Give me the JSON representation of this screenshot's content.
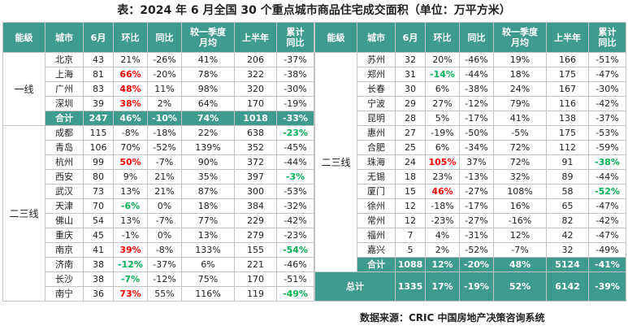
{
  "title": "表：2024 年 6 月全国 30 个重点城市商品住宅成交面积（单位：万平方米）",
  "headers": [
    "能级",
    "城市",
    "6月",
    "环比",
    "同比",
    "较一季度\n月均",
    "上半年",
    "累计\n同比"
  ],
  "left": {
    "groups": [
      {
        "level": "一线",
        "rows": [
          {
            "city": "北京",
            "jun": "43",
            "mom": "21%",
            "yoy": "-26%",
            "q1": "41%",
            "h1": "206",
            "cum": "-37%"
          },
          {
            "city": "上海",
            "jun": "81",
            "mom": "66%",
            "mom_c": "red",
            "yoy": "-20%",
            "q1": "78%",
            "h1": "322",
            "cum": "-38%"
          },
          {
            "city": "广州",
            "jun": "83",
            "mom": "48%",
            "mom_c": "red",
            "yoy": "11%",
            "q1": "98%",
            "h1": "320",
            "cum": "-30%"
          },
          {
            "city": "深圳",
            "jun": "39",
            "mom": "38%",
            "mom_c": "red",
            "yoy": "2%",
            "q1": "64%",
            "h1": "170",
            "cum": "-19%"
          }
        ],
        "total": {
          "city": "合计",
          "jun": "247",
          "mom": "46%",
          "yoy": "-10%",
          "q1": "74%",
          "h1": "1018",
          "cum": "-33%"
        }
      },
      {
        "level": "二三线",
        "rows": [
          {
            "city": "成都",
            "jun": "115",
            "mom": "-8%",
            "yoy": "-18%",
            "q1": "22%",
            "h1": "638",
            "cum": "-23%",
            "cum_c": "green"
          },
          {
            "city": "青岛",
            "jun": "106",
            "mom": "70%",
            "yoy": "-52%",
            "q1": "139%",
            "h1": "352",
            "cum": "-45%"
          },
          {
            "city": "杭州",
            "jun": "99",
            "mom": "50%",
            "mom_c": "red",
            "yoy": "-7%",
            "q1": "90%",
            "h1": "372",
            "cum": "-44%"
          },
          {
            "city": "西安",
            "jun": "80",
            "mom": "9%",
            "yoy": "21%",
            "q1": "35%",
            "h1": "397",
            "cum": "-3%",
            "cum_c": "green"
          },
          {
            "city": "武汉",
            "jun": "73",
            "mom": "13%",
            "yoy": "21%",
            "q1": "87%",
            "h1": "300",
            "cum": "-53%"
          },
          {
            "city": "天津",
            "jun": "70",
            "mom": "-6%",
            "mom_c": "green",
            "yoy": "0%",
            "q1": "18%",
            "h1": "384",
            "cum": "-32%"
          },
          {
            "city": "佛山",
            "jun": "54",
            "mom": "13%",
            "yoy": "-7%",
            "q1": "77%",
            "h1": "229",
            "cum": "-42%"
          },
          {
            "city": "重庆",
            "jun": "45",
            "mom": "-1%",
            "yoy": "0%",
            "q1": "13%",
            "h1": "279",
            "cum": "-23%"
          },
          {
            "city": "南京",
            "jun": "41",
            "mom": "39%",
            "mom_c": "red",
            "yoy": "-8%",
            "q1": "133%",
            "h1": "155",
            "cum": "-54%",
            "cum_c": "green"
          },
          {
            "city": "济南",
            "jun": "38",
            "mom": "-12%",
            "mom_c": "green",
            "yoy": "-37%",
            "q1": "6%",
            "h1": "221",
            "cum": "-46%"
          },
          {
            "city": "长沙",
            "jun": "38",
            "mom": "-7%",
            "mom_c": "green",
            "yoy": "-12%",
            "q1": "75%",
            "h1": "170",
            "cum": "-51%"
          },
          {
            "city": "南宁",
            "jun": "36",
            "mom": "73%",
            "mom_c": "red",
            "yoy": "55%",
            "q1": "116%",
            "h1": "119",
            "cum": "-49%",
            "cum_c": "green"
          }
        ]
      }
    ]
  },
  "right": {
    "level": "二三线",
    "rows": [
      {
        "city": "苏州",
        "jun": "32",
        "mom": "20%",
        "yoy": "-46%",
        "q1": "19%",
        "h1": "166",
        "cum": "-51%"
      },
      {
        "city": "郑州",
        "jun": "31",
        "mom": "-14%",
        "mom_c": "green",
        "yoy": "-44%",
        "q1": "18%",
        "h1": "175",
        "cum": "-47%"
      },
      {
        "city": "长春",
        "jun": "30",
        "mom": "6%",
        "yoy": "-38%",
        "q1": "24%",
        "h1": "167",
        "cum": "-30%"
      },
      {
        "city": "宁波",
        "jun": "29",
        "mom": "27%",
        "yoy": "-12%",
        "q1": "79%",
        "h1": "116",
        "cum": "-42%"
      },
      {
        "city": "昆明",
        "jun": "28",
        "mom": "5%",
        "yoy": "-17%",
        "q1": "41%",
        "h1": "138",
        "cum": "-37%"
      },
      {
        "city": "惠州",
        "jun": "27",
        "mom": "-19%",
        "yoy": "-50%",
        "q1": "-5%",
        "h1": "175",
        "cum": "-53%"
      },
      {
        "city": "合肥",
        "jun": "25",
        "mom": "6%",
        "yoy": "-34%",
        "q1": "72%",
        "h1": "112",
        "cum": "-59%"
      },
      {
        "city": "珠海",
        "jun": "24",
        "mom": "105%",
        "mom_c": "red",
        "yoy": "37%",
        "q1": "72%",
        "h1": "91",
        "cum": "-38%",
        "cum_c": "green"
      },
      {
        "city": "无锡",
        "jun": "18",
        "mom": "23%",
        "yoy": "-13%",
        "q1": "32%",
        "h1": "89",
        "cum": "-44%"
      },
      {
        "city": "厦门",
        "jun": "15",
        "mom": "46%",
        "mom_c": "red",
        "yoy": "-27%",
        "q1": "108%",
        "h1": "58",
        "cum": "-52%",
        "cum_c": "green"
      },
      {
        "city": "徐州",
        "jun": "12",
        "mom": "-18%",
        "yoy": "-17%",
        "q1": "16%",
        "h1": "65",
        "cum": "-47%"
      },
      {
        "city": "常州",
        "jun": "12",
        "mom": "-23%",
        "yoy": "-27%",
        "q1": "-16%",
        "h1": "82",
        "cum": "-42%"
      },
      {
        "city": "福州",
        "jun": "7",
        "mom": "4%",
        "yoy": "-31%",
        "q1": "12%",
        "h1": "42",
        "cum": "-47%"
      },
      {
        "city": "嘉兴",
        "jun": "5",
        "mom": "2%",
        "yoy": "-52%",
        "q1": "-7%",
        "h1": "32",
        "cum": "-49%"
      }
    ],
    "total": {
      "city": "合计",
      "jun": "1088",
      "mom": "12%",
      "yoy": "-20%",
      "q1": "48%",
      "h1": "5124",
      "cum": "-41%"
    },
    "grand": {
      "label": "总计",
      "jun": "1335",
      "mom": "17%",
      "yoy": "-19%",
      "q1": "52%",
      "h1": "6142",
      "cum": "-39%"
    }
  },
  "source": "数据来源：CRIC 中国房地产决策咨询系统"
}
